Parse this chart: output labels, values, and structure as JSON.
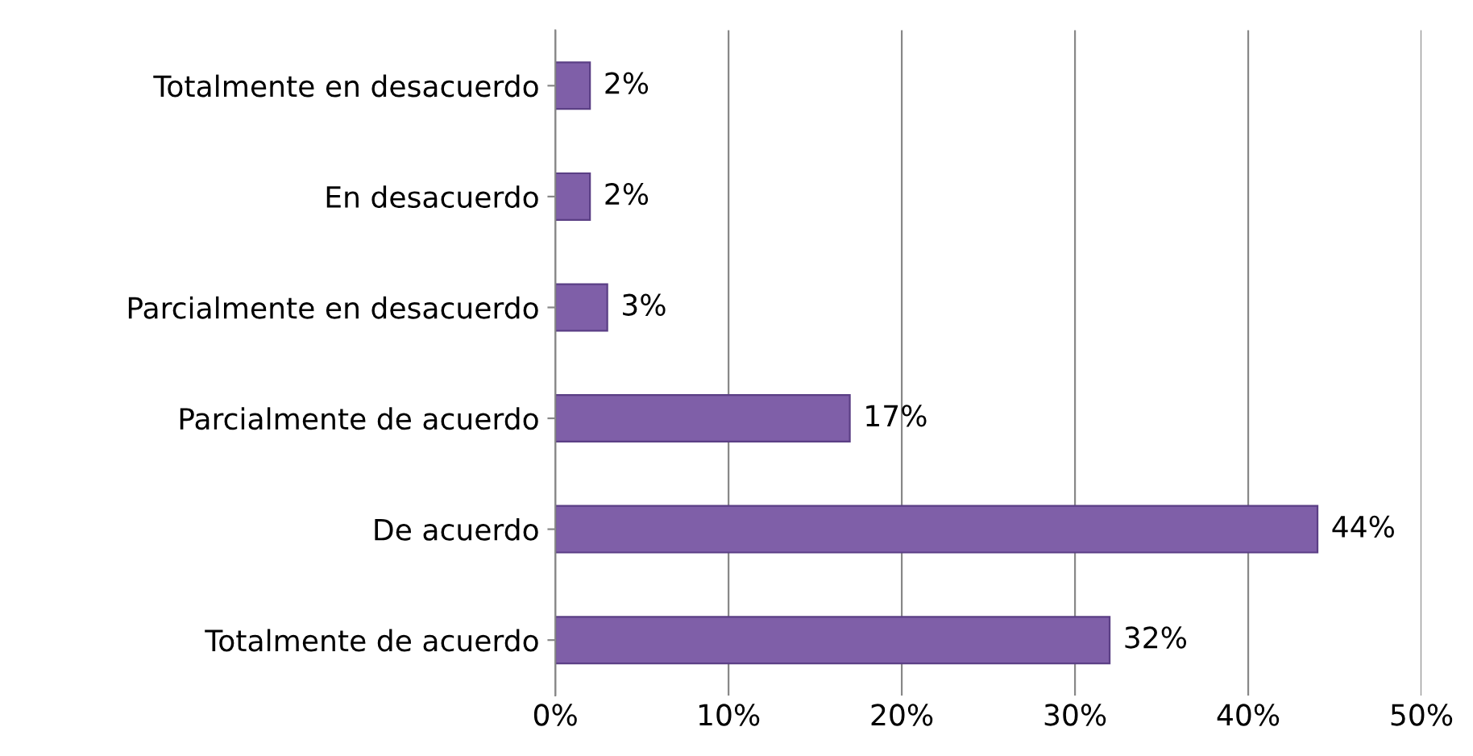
{
  "chart_data": {
    "type": "bar",
    "orientation": "horizontal",
    "categories": [
      "Totalmente en desacuerdo",
      "En desacuerdo",
      "Parcialmente en desacuerdo",
      "Parcialmente de acuerdo",
      "De acuerdo",
      "Totalmente de acuerdo"
    ],
    "values": [
      2,
      2,
      3,
      17,
      44,
      32
    ],
    "value_labels": [
      "2%",
      "2%",
      "3%",
      "17%",
      "44%",
      "32%"
    ],
    "color": "#7f5fa8",
    "xlim": [
      0,
      50
    ],
    "xticks": [
      {
        "value": 0,
        "label": "0%"
      },
      {
        "value": 10,
        "label": "10%"
      },
      {
        "value": 20,
        "label": "20%"
      },
      {
        "value": 30,
        "label": "30%"
      },
      {
        "value": 40,
        "label": "40%"
      },
      {
        "value": 50,
        "label": "50%"
      }
    ],
    "grid": "x"
  }
}
